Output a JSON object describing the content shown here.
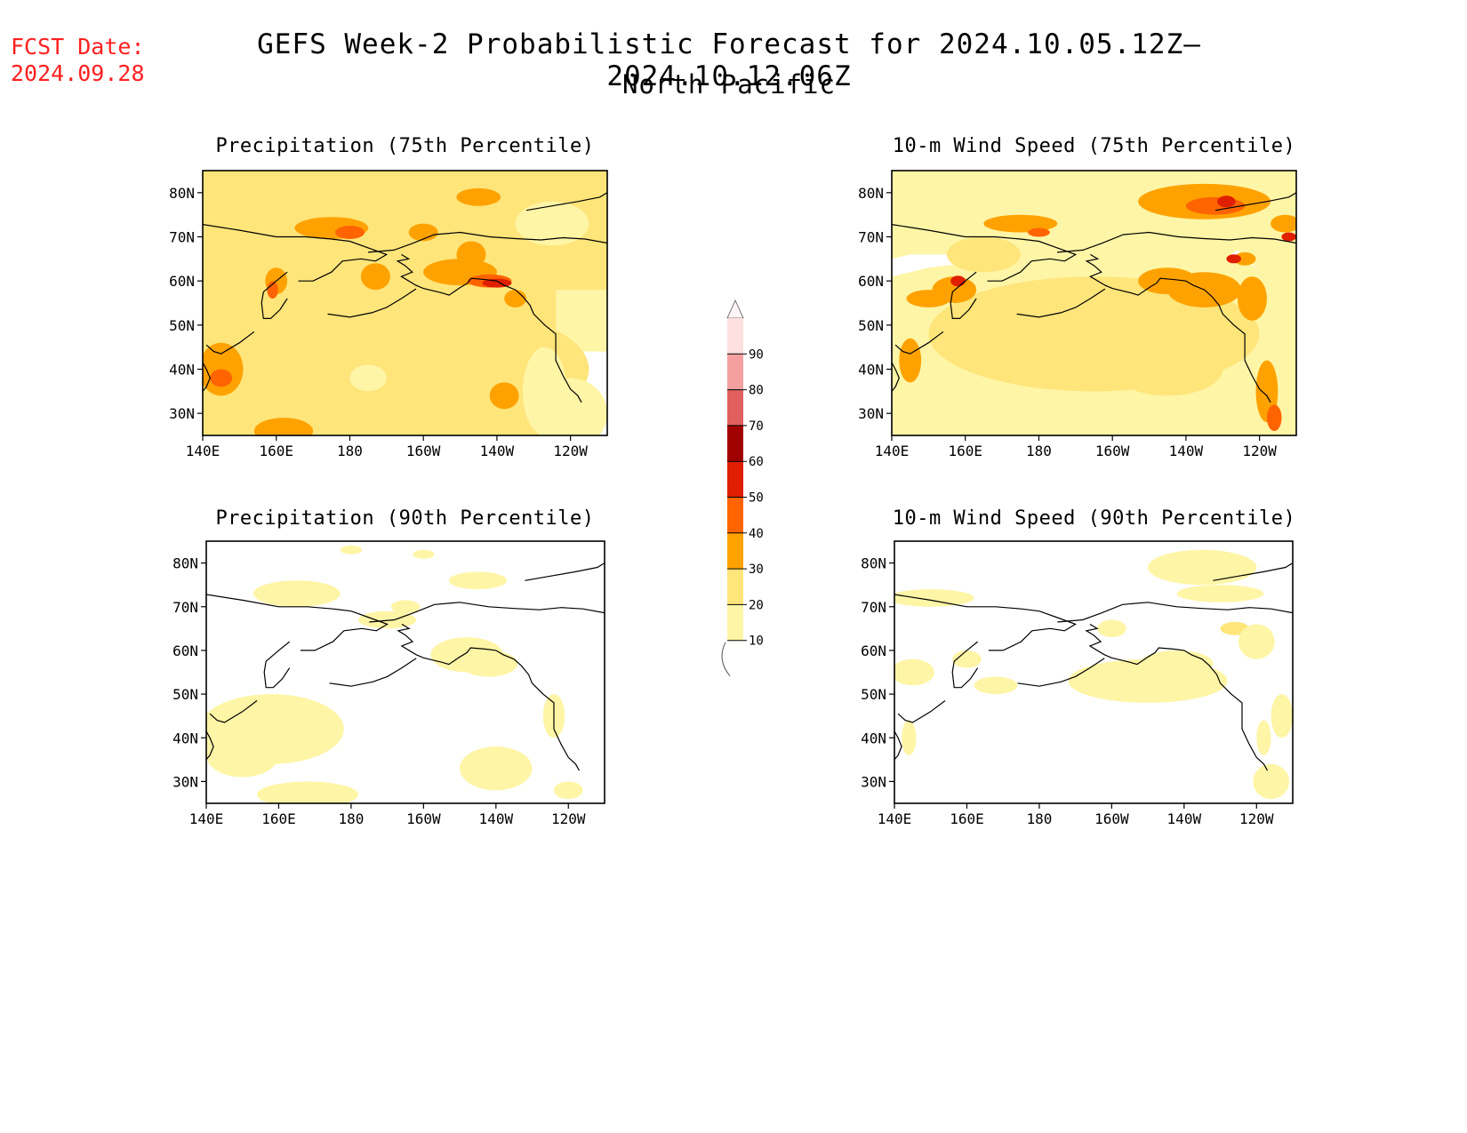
{
  "header": {
    "fcst_label": "FCST Date:",
    "fcst_date": "2024.09.28",
    "title": "GEFS Week-2 Probabilistic Forecast for 2024.10.05.12Z–2024.10.12.06Z",
    "subtitle": "North Pacific"
  },
  "panels": [
    {
      "title": "Precipitation (75th Percentile)",
      "variable": "precipitation",
      "percentile": 75
    },
    {
      "title": "10-m Wind Speed (75th Percentile)",
      "variable": "wind",
      "percentile": 75
    },
    {
      "title": "Precipitation (90th Percentile)",
      "variable": "precipitation",
      "percentile": 90
    },
    {
      "title": "10-m Wind Speed (90th Percentile)",
      "variable": "wind",
      "percentile": 90
    }
  ],
  "axes": {
    "lat_labels": [
      "80N",
      "70N",
      "60N",
      "50N",
      "40N",
      "30N"
    ],
    "lat_values": [
      80,
      70,
      60,
      50,
      40,
      30
    ],
    "lon_labels": [
      "140E",
      "160E",
      "180",
      "160W",
      "140W",
      "120W"
    ],
    "lon_values": [
      140,
      160,
      180,
      200,
      220,
      240
    ],
    "lon_range": [
      140,
      250
    ],
    "lat_range": [
      25,
      85
    ]
  },
  "colorbar": {
    "labels": [
      "10",
      "20",
      "30",
      "40",
      "50",
      "60",
      "70",
      "80",
      "90"
    ],
    "colors": [
      "#fff5a6",
      "#ffe57a",
      "#ffa200",
      "#ff6400",
      "#e01e00",
      "#a00000",
      "#e06060",
      "#f4a0a0",
      "#fde0e0"
    ]
  },
  "map_colors": {
    "p10": "#fff5a6",
    "p20": "#ffe57a",
    "p30": "#ffa200",
    "p40": "#ff6400",
    "p50": "#e01e00",
    "coast": "#000000"
  }
}
